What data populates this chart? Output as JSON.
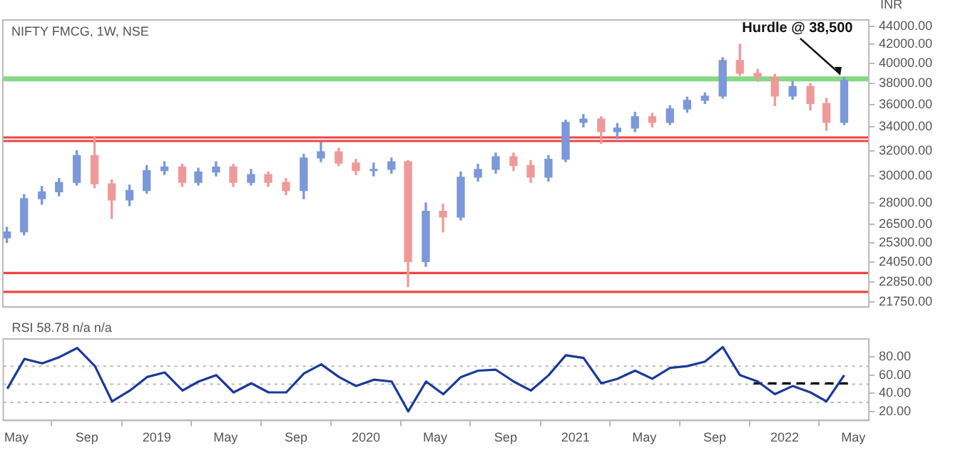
{
  "chart_data": [
    {
      "type": "candlestick",
      "title": "NIFTY FMCG, 1W, NSE",
      "ylabel": "INR",
      "log": true,
      "grid": false,
      "legend": false,
      "tick_labels": "y",
      "x": [
        "2018-04-15",
        "2018-05-15",
        "2018-06-15",
        "2018-07-15",
        "2018-08-15",
        "2018-09-15",
        "2018-10-15",
        "2018-11-15",
        "2018-12-15",
        "2019-01-15",
        "2019-02-15",
        "2019-03-15",
        "2019-04-15",
        "2019-05-15",
        "2019-06-15",
        "2019-07-15",
        "2019-08-15",
        "2019-09-15",
        "2019-10-15",
        "2019-11-15",
        "2019-12-15",
        "2020-01-15",
        "2020-02-15",
        "2020-03-15",
        "2020-04-15",
        "2020-05-15",
        "2020-06-15",
        "2020-07-15",
        "2020-08-15",
        "2020-09-15",
        "2020-10-15",
        "2020-11-15",
        "2020-12-15",
        "2021-01-15",
        "2021-02-15",
        "2021-03-15",
        "2021-04-15",
        "2021-05-15",
        "2021-06-15",
        "2021-07-15",
        "2021-08-15",
        "2021-09-15",
        "2021-10-15",
        "2021-11-15",
        "2021-12-15",
        "2022-01-15",
        "2022-02-15",
        "2022-03-15",
        "2022-04-15"
      ],
      "ohlc": [
        [
          25600,
          26300,
          25300,
          26000
        ],
        [
          26000,
          28600,
          25800,
          28300
        ],
        [
          28300,
          29200,
          27900,
          28800
        ],
        [
          28800,
          29800,
          28500,
          29500
        ],
        [
          29500,
          32000,
          29300,
          31600
        ],
        [
          31600,
          33100,
          29100,
          29400
        ],
        [
          29400,
          29700,
          26900,
          28200
        ],
        [
          28200,
          29300,
          27800,
          28900
        ],
        [
          28900,
          30800,
          28700,
          30400
        ],
        [
          30400,
          31100,
          30100,
          30700
        ],
        [
          30700,
          30900,
          29200,
          29500
        ],
        [
          29500,
          30600,
          29300,
          30300
        ],
        [
          30300,
          31100,
          30000,
          30700
        ],
        [
          30700,
          30900,
          29200,
          29500
        ],
        [
          29500,
          30500,
          29300,
          30100
        ],
        [
          30100,
          30300,
          29200,
          29500
        ],
        [
          29500,
          29800,
          28600,
          28900
        ],
        [
          28900,
          31700,
          28300,
          31400
        ],
        [
          31400,
          32700,
          31100,
          31900
        ],
        [
          31900,
          32200,
          30800,
          31000
        ],
        [
          31000,
          31300,
          30100,
          30400
        ],
        [
          30400,
          31000,
          30000,
          30500
        ],
        [
          30500,
          31400,
          30200,
          31100
        ],
        [
          31100,
          31200,
          22600,
          24100
        ],
        [
          24100,
          28000,
          23800,
          27400
        ],
        [
          27400,
          27900,
          26000,
          27000
        ],
        [
          27000,
          30300,
          26800,
          29900
        ],
        [
          29900,
          30900,
          29600,
          30500
        ],
        [
          30500,
          31800,
          30200,
          31500
        ],
        [
          31500,
          31800,
          30400,
          30800
        ],
        [
          30800,
          31200,
          29500,
          29900
        ],
        [
          29900,
          31600,
          29600,
          31300
        ],
        [
          31300,
          34600,
          31100,
          34400
        ],
        [
          34400,
          35100,
          34000,
          34700
        ],
        [
          34700,
          34900,
          32600,
          33600
        ],
        [
          33600,
          34300,
          33000,
          33900
        ],
        [
          33900,
          35300,
          33600,
          34900
        ],
        [
          34900,
          35200,
          34000,
          34400
        ],
        [
          34400,
          35900,
          34200,
          35600
        ],
        [
          35600,
          36700,
          35300,
          36400
        ],
        [
          36400,
          37100,
          36100,
          36800
        ],
        [
          36800,
          40600,
          36600,
          40300
        ],
        [
          40300,
          42000,
          38800,
          39000
        ],
        [
          39000,
          39400,
          38200,
          38600
        ],
        [
          38600,
          38900,
          35900,
          36800
        ],
        [
          36800,
          38200,
          36500,
          37700
        ],
        [
          37700,
          38000,
          35500,
          36100
        ],
        [
          36100,
          36600,
          33700,
          34400
        ],
        [
          34400,
          38600,
          34200,
          38300
        ]
      ],
      "colors": [
        "#7b98d8",
        "#7b98d8",
        "#7b98d8",
        "#7b98d8",
        "#7b98d8",
        "#ef9a9a",
        "#ef9a9a",
        "#7b98d8",
        "#7b98d8",
        "#7b98d8",
        "#ef9a9a",
        "#7b98d8",
        "#7b98d8",
        "#ef9a9a",
        "#7b98d8",
        "#ef9a9a",
        "#ef9a9a",
        "#7b98d8",
        "#7b98d8",
        "#ef9a9a",
        "#ef9a9a",
        "#7b98d8",
        "#7b98d8",
        "#ef9a9a",
        "#7b98d8",
        "#ef9a9a",
        "#7b98d8",
        "#7b98d8",
        "#7b98d8",
        "#ef9a9a",
        "#ef9a9a",
        "#7b98d8",
        "#7b98d8",
        "#7b98d8",
        "#ef9a9a",
        "#7b98d8",
        "#7b98d8",
        "#ef9a9a",
        "#7b98d8",
        "#7b98d8",
        "#7b98d8",
        "#7b98d8",
        "#ef9a9a",
        "#ef9a9a",
        "#ef9a9a",
        "#7b98d8",
        "#ef9a9a",
        "#ef9a9a",
        "#7b98d8"
      ],
      "xlim": [
        "2018-04-08",
        "2022-05-28"
      ],
      "ylim": [
        21450,
        44700
      ],
      "yticks": [
        {
          "value": 21750,
          "label": "21750.00"
        },
        {
          "value": 22850,
          "label": "22850.00"
        },
        {
          "value": 24050,
          "label": "24050.00"
        },
        {
          "value": 25300,
          "label": "25300.00"
        },
        {
          "value": 26500,
          "label": "26500.00"
        },
        {
          "value": 28000,
          "label": "28000.00"
        },
        {
          "value": 30000,
          "label": "30000.00"
        },
        {
          "value": 32000,
          "label": "32000.00"
        },
        {
          "value": 34000,
          "label": "34000.00"
        },
        {
          "value": 36000,
          "label": "36000.00"
        },
        {
          "value": 38000,
          "label": "38000.00"
        },
        {
          "value": 40000,
          "label": "40000.00"
        },
        {
          "value": 42000,
          "label": "42000.00"
        },
        {
          "value": 44000,
          "label": "44000.00"
        }
      ],
      "ref_lines": [
        {
          "axis": "y",
          "value": 33100,
          "color": "#ee4444"
        },
        {
          "axis": "y",
          "value": 32800,
          "color": "#ee4444"
        },
        {
          "axis": "y",
          "value": 23400,
          "color": "#ee4444"
        },
        {
          "axis": "y",
          "value": 22300,
          "color": "#ee4444"
        }
      ],
      "bands": [
        {
          "axis": "y",
          "from": 38200,
          "to": 38700,
          "color": "#86d886"
        }
      ],
      "annotations": [
        {
          "text": "Hurdle @ 38,500",
          "x": "2022-04-08",
          "y": 38500
        }
      ]
    },
    {
      "type": "line",
      "grid": false,
      "legend": false,
      "marker": "none",
      "x": [
        "2018-04-15",
        "2018-05-15",
        "2018-06-15",
        "2018-07-15",
        "2018-08-15",
        "2018-09-15",
        "2018-10-15",
        "2018-11-15",
        "2018-12-15",
        "2019-01-15",
        "2019-02-15",
        "2019-03-15",
        "2019-04-15",
        "2019-05-15",
        "2019-06-15",
        "2019-07-15",
        "2019-08-15",
        "2019-09-15",
        "2019-10-15",
        "2019-11-15",
        "2019-12-15",
        "2020-01-15",
        "2020-02-15",
        "2020-03-15",
        "2020-04-15",
        "2020-05-15",
        "2020-06-15",
        "2020-07-15",
        "2020-08-15",
        "2020-09-15",
        "2020-10-15",
        "2020-11-15",
        "2020-12-15",
        "2021-01-15",
        "2021-02-15",
        "2021-03-15",
        "2021-04-15",
        "2021-05-15",
        "2021-06-15",
        "2021-07-15",
        "2021-08-15",
        "2021-09-15",
        "2021-10-15",
        "2021-11-15",
        "2021-12-15",
        "2022-01-15",
        "2022-02-15",
        "2022-03-15",
        "2022-04-15"
      ],
      "series": [
        {
          "color": "#1a3a9a",
          "line_style": "solid",
          "values": [
            45,
            78,
            73,
            80,
            90,
            70,
            31,
            43,
            58,
            63,
            43,
            53,
            60,
            41,
            51,
            41,
            41,
            62,
            72,
            58,
            48,
            55,
            53,
            20,
            53,
            39,
            58,
            65,
            66,
            53,
            43,
            60,
            82,
            79,
            51,
            56,
            65,
            56,
            68,
            70,
            75,
            91,
            60,
            53,
            39,
            48,
            41,
            31,
            60
          ]
        },
        {
          "color": "#000000",
          "line_style": "dashed",
          "x": [
            "2021-11-08",
            "2022-04-22"
          ],
          "values": [
            51,
            51
          ]
        }
      ],
      "xlim": [
        "2018-04-08",
        "2022-05-28"
      ],
      "xticks": [
        {
          "value": "2018-05-01",
          "label": "May"
        },
        {
          "value": "2018-09-01",
          "label": "Sep"
        },
        {
          "value": "2019-01-01",
          "label": "2019"
        },
        {
          "value": "2019-05-01",
          "label": "May"
        },
        {
          "value": "2019-09-01",
          "label": "Sep"
        },
        {
          "value": "2020-01-01",
          "label": "2020"
        },
        {
          "value": "2020-05-01",
          "label": "May"
        },
        {
          "value": "2020-09-01",
          "label": "Sep"
        },
        {
          "value": "2021-01-01",
          "label": "2021"
        },
        {
          "value": "2021-05-01",
          "label": "May"
        },
        {
          "value": "2021-09-01",
          "label": "Sep"
        },
        {
          "value": "2022-01-01",
          "label": "2022"
        },
        {
          "value": "2022-05-01",
          "label": "May"
        }
      ],
      "ylim": [
        10,
        100
      ],
      "yticks": [
        {
          "value": 20,
          "label": "20.00"
        },
        {
          "value": 40,
          "label": "40.00"
        },
        {
          "value": 60,
          "label": "60.00"
        },
        {
          "value": 80,
          "label": "80.00"
        }
      ],
      "ref_lines": [
        {
          "axis": "y",
          "value": 70,
          "color": "#b8b8b8",
          "line_style": "dotted"
        },
        {
          "axis": "y",
          "value": 50,
          "color": "#b8b8b8",
          "line_style": "dotted"
        },
        {
          "axis": "y",
          "value": 30,
          "color": "#b8b8b8",
          "line_style": "dotted"
        }
      ],
      "annotations": [
        "RSI 58.78 n/a n/a"
      ]
    }
  ]
}
